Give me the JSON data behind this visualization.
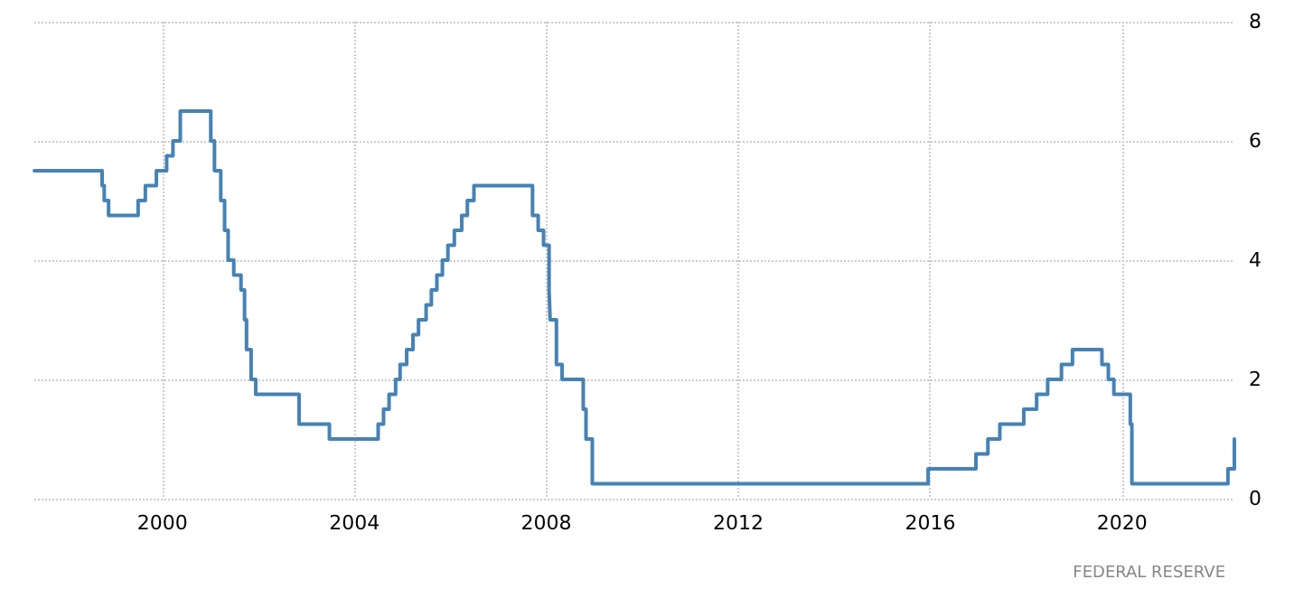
{
  "chart_data": {
    "type": "step",
    "color": "#4682b4",
    "x": [
      "1997-05-01",
      "1998-09-29",
      "1998-10-15",
      "1998-11-17",
      "1999-06-30",
      "1999-08-24",
      "1999-11-16",
      "2000-02-02",
      "2000-03-21",
      "2000-05-16",
      "2001-01-03",
      "2001-01-31",
      "2001-03-20",
      "2001-04-18",
      "2001-05-15",
      "2001-06-27",
      "2001-08-21",
      "2001-09-17",
      "2001-10-02",
      "2001-11-06",
      "2001-12-11",
      "2002-11-06",
      "2003-06-25",
      "2004-06-30",
      "2004-08-10",
      "2004-09-21",
      "2004-11-10",
      "2004-12-14",
      "2005-02-02",
      "2005-03-22",
      "2005-05-03",
      "2005-06-30",
      "2005-08-09",
      "2005-09-20",
      "2005-11-01",
      "2005-12-13",
      "2006-01-31",
      "2006-03-28",
      "2006-05-10",
      "2006-06-29",
      "2007-09-18",
      "2007-10-31",
      "2007-12-11",
      "2008-01-22",
      "2008-01-30",
      "2008-03-18",
      "2008-04-30",
      "2008-10-08",
      "2008-10-29",
      "2008-12-16",
      "2015-12-16",
      "2016-12-14",
      "2017-03-15",
      "2017-06-14",
      "2017-12-13",
      "2018-03-21",
      "2018-06-13",
      "2018-09-26",
      "2018-12-19",
      "2019-07-31",
      "2019-09-18",
      "2019-10-30",
      "2020-03-03",
      "2020-03-15",
      "2022-03-16",
      "2022-05-04"
    ],
    "values": [
      5.5,
      5.25,
      5.0,
      4.75,
      5.0,
      5.25,
      5.5,
      5.75,
      6.0,
      6.5,
      6.0,
      5.5,
      5.0,
      4.5,
      4.0,
      3.75,
      3.5,
      3.0,
      2.5,
      2.0,
      1.75,
      1.25,
      1.0,
      1.25,
      1.5,
      1.75,
      2.0,
      2.25,
      2.5,
      2.75,
      3.0,
      3.25,
      3.5,
      3.75,
      4.0,
      4.25,
      4.5,
      4.75,
      5.0,
      5.25,
      4.75,
      4.5,
      4.25,
      3.5,
      3.0,
      2.25,
      2.0,
      1.5,
      1.0,
      0.25,
      0.5,
      0.75,
      1.0,
      1.25,
      1.5,
      1.75,
      2.0,
      2.25,
      2.5,
      2.25,
      2.0,
      1.75,
      1.25,
      0.25,
      0.5,
      1.0
    ],
    "xlim": [
      "1997-05-01",
      "2022-05-04"
    ],
    "xticks": [
      "2000",
      "2004",
      "2008",
      "2012",
      "2016",
      "2020"
    ],
    "ylim": [
      0,
      8
    ],
    "yticks": [
      0,
      2,
      4,
      6,
      8
    ],
    "grid": true,
    "line_style": "solid",
    "marker": "none",
    "annotations": [
      "FEDERAL RESERVE"
    ]
  }
}
